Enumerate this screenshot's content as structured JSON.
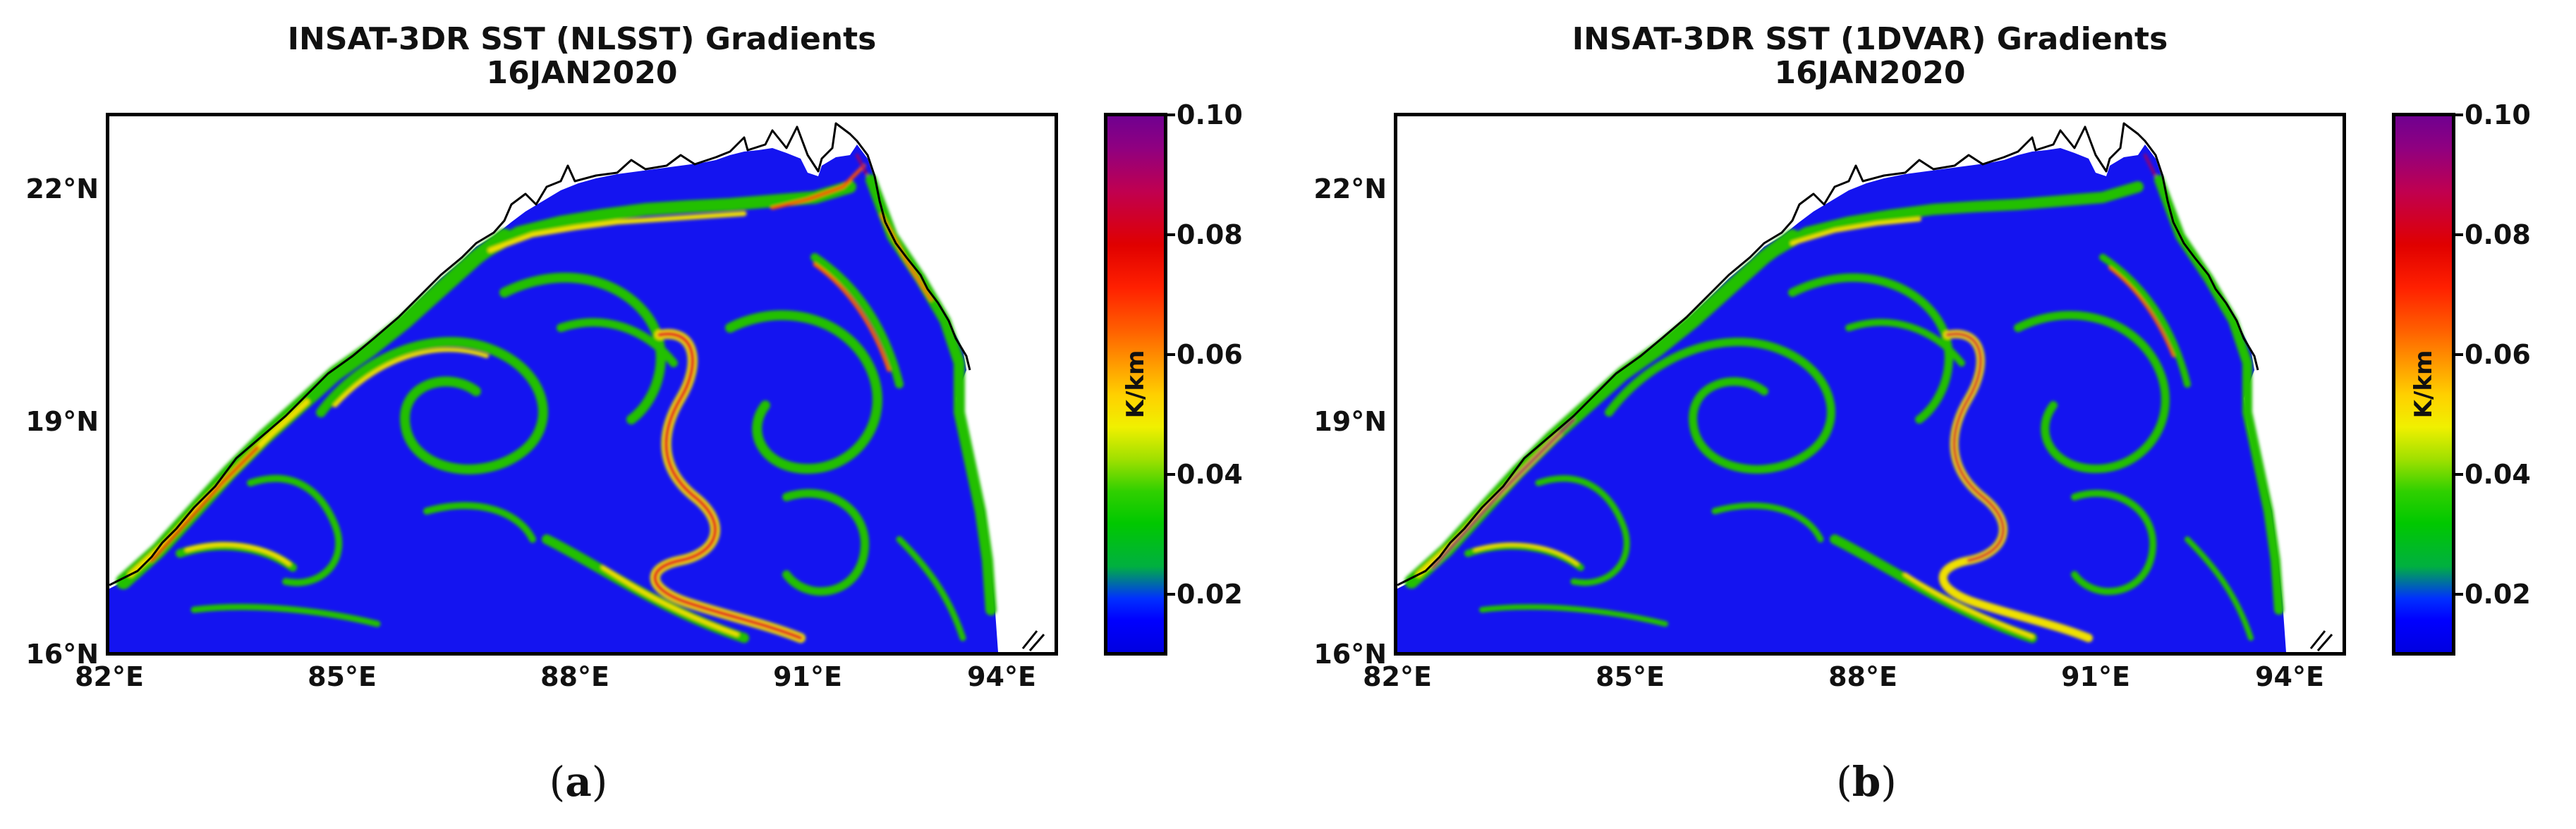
{
  "panels": [
    {
      "id": "a",
      "title_line1": "INSAT-3DR SST (NLSST) Gradients",
      "title_line2": "16JAN2020",
      "label_open": "(",
      "label_letter": "a",
      "label_close": ")"
    },
    {
      "id": "b",
      "title_line1": "INSAT-3DR SST (1DVAR) Gradients",
      "title_line2": "16JAN2020",
      "label_open": "(",
      "label_letter": "b",
      "label_close": ")"
    }
  ],
  "axes": {
    "lat_ticks": [
      "22°N",
      "19°N",
      "16°N"
    ],
    "lon_ticks": [
      "82°E",
      "85°E",
      "88°E",
      "91°E",
      "94°E"
    ]
  },
  "colorbar": {
    "label": "K/km",
    "ticks": [
      "0.10",
      "0.08",
      "0.06",
      "0.04",
      "0.02"
    ],
    "colors": [
      "#0000ff",
      "#00c800",
      "#f0f000",
      "#ff8000",
      "#e00000",
      "#700090"
    ]
  },
  "map_colors": {
    "water_background": "#1010f0",
    "land": "#ffffff",
    "coastline": "#000000"
  }
}
